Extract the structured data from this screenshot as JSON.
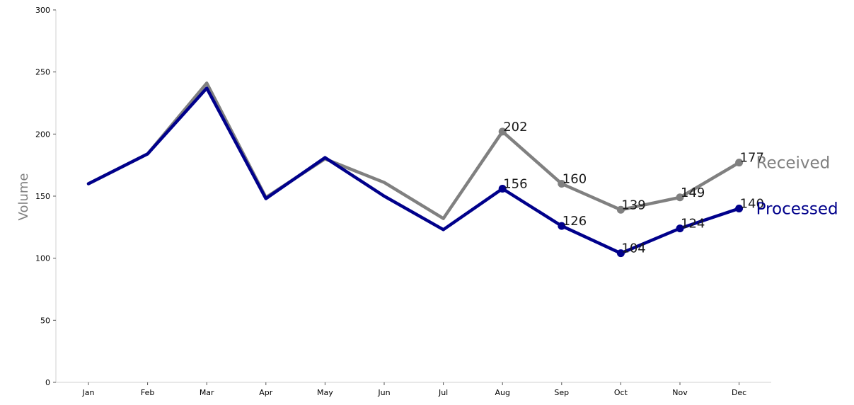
{
  "chart_data": {
    "type": "line",
    "title": "",
    "xlabel": "",
    "ylabel": "Volume",
    "ylim": [
      0,
      300
    ],
    "yticks": [
      0,
      50,
      100,
      150,
      200,
      250,
      300
    ],
    "categories": [
      "Jan",
      "Feb",
      "Mar",
      "Apr",
      "May",
      "Jun",
      "Jul",
      "Aug",
      "Sep",
      "Oct",
      "Nov",
      "Dec"
    ],
    "grid": false,
    "legend": "none",
    "series": [
      {
        "name": "Received",
        "color": "#808080",
        "values": [
          160,
          184,
          241,
          149,
          180,
          161,
          132,
          202,
          160,
          139,
          149,
          177
        ],
        "labeled_from": "Aug"
      },
      {
        "name": "Processed",
        "color": "#00008b",
        "values": [
          160,
          184,
          237,
          148,
          181,
          150,
          123,
          156,
          126,
          104,
          124,
          140
        ],
        "labeled_from": "Aug"
      }
    ]
  }
}
